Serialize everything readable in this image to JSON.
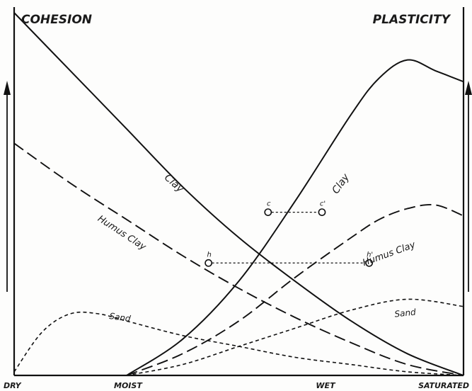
{
  "chart_data": {
    "type": "line",
    "title": "",
    "left_axis_label": "COHESION",
    "right_axis_label": "PLASTICITY",
    "x_ticks": [
      "DRY",
      "MOIST",
      "WET",
      "SATURATED"
    ],
    "x_tick_positions": [
      0,
      1,
      3,
      4
    ],
    "xlim": [
      0,
      4
    ],
    "ylim": [
      0,
      100
    ],
    "grid": false,
    "legend": "none",
    "series": [
      {
        "name": "Clay",
        "quantity": "cohesion",
        "style": "solid",
        "x": [
          0,
          0.5,
          1,
          1.5,
          2,
          2.5,
          3,
          3.5,
          4
        ],
        "y": [
          100,
          84,
          68,
          52,
          38,
          26,
          15,
          6,
          0
        ]
      },
      {
        "name": "Humus Clay",
        "quantity": "cohesion",
        "style": "long-dash",
        "x": [
          0,
          0.5,
          1,
          1.5,
          2,
          2.5,
          3,
          3.5,
          4
        ],
        "y": [
          64,
          53,
          43,
          33,
          24,
          16,
          9,
          3,
          0
        ]
      },
      {
        "name": "Sand",
        "quantity": "cohesion",
        "style": "short-dash",
        "x": [
          0,
          0.25,
          0.5,
          0.75,
          1,
          1.5,
          2,
          2.5,
          3,
          3.5,
          4
        ],
        "y": [
          1,
          12,
          17,
          17,
          15,
          11,
          8,
          5,
          3,
          1,
          0
        ]
      },
      {
        "name": "Clay",
        "quantity": "plasticity",
        "style": "solid",
        "x": [
          1,
          1.5,
          2,
          2.5,
          3,
          3.25,
          3.5,
          3.75,
          4
        ],
        "y": [
          0,
          10,
          26,
          48,
          72,
          82,
          87,
          84,
          81
        ]
      },
      {
        "name": "Humus Clay",
        "quantity": "plasticity",
        "style": "long-dash",
        "x": [
          1,
          1.5,
          2,
          2.5,
          3,
          3.25,
          3.5,
          3.75,
          4
        ],
        "y": [
          0,
          6,
          15,
          27,
          38,
          43,
          46,
          47,
          44
        ]
      },
      {
        "name": "Sand",
        "quantity": "plasticity",
        "style": "short-dash",
        "x": [
          1,
          1.5,
          2,
          2.5,
          3,
          3.5,
          4
        ],
        "y": [
          0,
          3,
          8,
          13,
          18,
          21,
          19
        ]
      }
    ],
    "annotations": [
      {
        "text": "c",
        "x": 2.26,
        "y": 45
      },
      {
        "text": "c'",
        "x": 2.74,
        "y": 45
      },
      {
        "text": "h",
        "x": 1.73,
        "y": 31
      },
      {
        "text": "h'",
        "x": 3.16,
        "y": 31
      }
    ]
  }
}
